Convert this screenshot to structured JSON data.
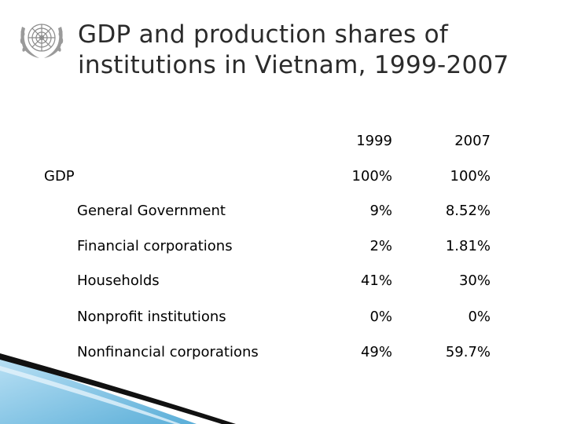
{
  "title": {
    "line1": "GDP and production shares of",
    "line2": "institutions in Vietnam, 1999-2007"
  },
  "table": {
    "columns": [
      "1999",
      "2007"
    ],
    "rows": [
      {
        "label": "GDP",
        "v1999": "100%",
        "v2007": "100%"
      },
      {
        "label": "General Government",
        "v1999": "9%",
        "v2007": "8.52%"
      },
      {
        "label": "Financial corporations",
        "v1999": "2%",
        "v2007": "1.81%"
      },
      {
        "label": "Households",
        "v1999": "41%",
        "v2007": "30%"
      },
      {
        "label": "Nonprofit institutions",
        "v1999": "0%",
        "v2007": "0%"
      },
      {
        "label": "Nonfinancial corporations",
        "v1999": "49%",
        "v2007": "59.7%"
      }
    ]
  },
  "colors": {
    "title": "#2b2b2b",
    "text": "#000000",
    "accent_blue": "#8fc9e8",
    "accent_dark": "#111111"
  }
}
